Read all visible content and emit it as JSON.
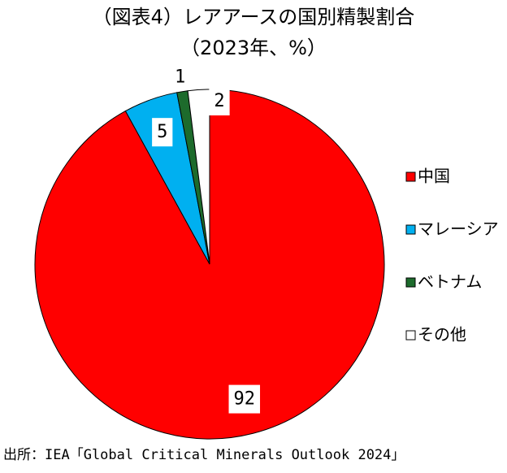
{
  "chart_data": {
    "type": "pie",
    "title": "（図表4）レアアースの国別精製割合",
    "subtitle": "（2023年、%）",
    "categories": [
      "中国",
      "マレーシア",
      "ベトナム",
      "その他"
    ],
    "values": [
      92,
      5,
      1,
      2
    ],
    "colors": [
      "#ff0000",
      "#00b0f0",
      "#1d6b2c",
      "#ffffff"
    ],
    "legend": "right",
    "source": "出所：IEA「Global Critical Minerals Outlook 2024」"
  }
}
